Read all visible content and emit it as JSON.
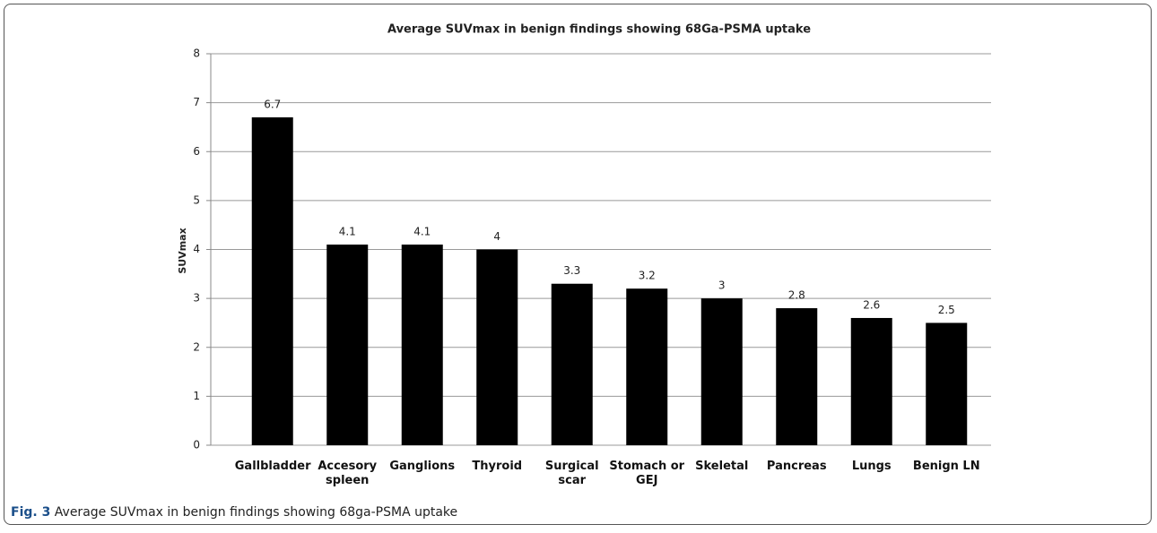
{
  "chart_data": {
    "type": "bar",
    "title": "Average SUVmax in benign findings showing 68Ga-PSMA uptake",
    "y_label": "SUVmax",
    "categories": [
      "Gallbladder",
      "Accesory spleen",
      "Ganglions",
      "Thyroid",
      "Surgical scar",
      "Stomach or GEJ",
      "Skeletal",
      "Pancreas",
      "Lungs",
      "Benign LN"
    ],
    "values": [
      6.7,
      4.1,
      4.1,
      4,
      3.3,
      3.2,
      3,
      2.8,
      2.6,
      2.5
    ],
    "color": "#000000",
    "ylim": [
      0,
      8
    ],
    "yticks": [
      0,
      1,
      2,
      3,
      4,
      5,
      6,
      7,
      8
    ],
    "grid": true
  },
  "caption": {
    "label": "Fig. 3",
    "text": "Average SUVmax in benign findings showing 68ga-PSMA uptake"
  }
}
